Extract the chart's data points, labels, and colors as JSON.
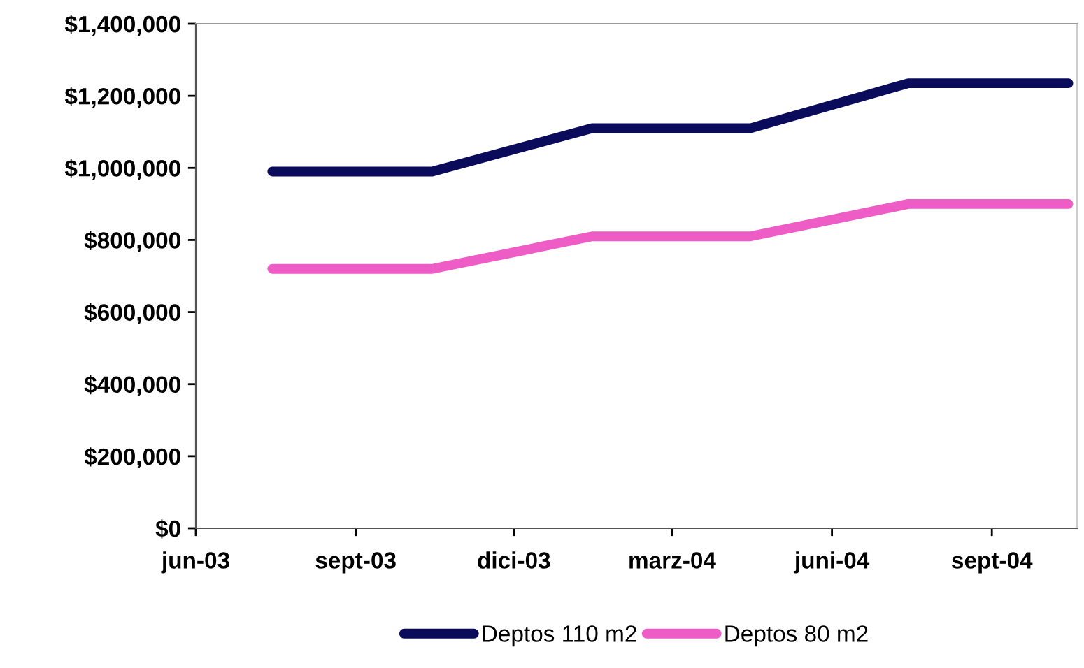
{
  "chart_data": {
    "type": "line",
    "x": [
      "2003-07-15",
      "2003-10-15",
      "2004-01-15",
      "2004-04-15",
      "2004-07-15",
      "2004-10-15"
    ],
    "series": [
      {
        "name": "Deptos 110 m2",
        "color": "#0b0b5c",
        "values": [
          990000,
          990000,
          1110000,
          1110000,
          1235000,
          1235000
        ]
      },
      {
        "name": "Deptos 80 m2",
        "color": "#ee5cc6",
        "values": [
          720000,
          720000,
          810000,
          810000,
          900000,
          900000
        ]
      }
    ],
    "xlim": [
      "2003-06-01",
      "2004-10-20"
    ],
    "xticks": [
      {
        "value": "2003-06-01",
        "label": "jun-03"
      },
      {
        "value": "2003-09-01",
        "label": "sept-03"
      },
      {
        "value": "2003-12-01",
        "label": "dici-03"
      },
      {
        "value": "2004-03-01",
        "label": "marz-04"
      },
      {
        "value": "2004-06-01",
        "label": "juni-04"
      },
      {
        "value": "2004-09-01",
        "label": "sept-04"
      }
    ],
    "ylim": [
      0,
      1400000
    ],
    "yticks": [
      {
        "value": 0,
        "label": "$0"
      },
      {
        "value": 200000,
        "label": "$200,000"
      },
      {
        "value": 400000,
        "label": "$400,000"
      },
      {
        "value": 600000,
        "label": "$600,000"
      },
      {
        "value": 800000,
        "label": "$800,000"
      },
      {
        "value": 1000000,
        "label": "$1,000,000"
      },
      {
        "value": 1200000,
        "label": "$1,200,000"
      },
      {
        "value": 1400000,
        "label": "$1,400,000"
      }
    ],
    "grid": false,
    "legend": "bottom",
    "marker": "none",
    "line_style": "solid"
  }
}
